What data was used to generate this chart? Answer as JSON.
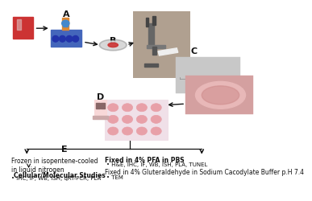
{
  "bg_color": "#ffffff",
  "label_A": "A",
  "label_B": "B",
  "label_C": "C",
  "label_D": "D",
  "label_E": "E",
  "frozen_title": "Frozen in isopentene-cooled\nin liquid nitrogen",
  "cellular_title": "Cellular/Molecular Studies",
  "cellular_items": "• IHC, IF, WB, ISH, qRT-PCR, PLA",
  "fixed_pfa_title": "Fixed in 4% PFA in PBS",
  "fixed_pfa_items": "• H&E, IHC, IF, WB, ISH, PLA, TUNEL",
  "fixed_glut_title": "Fixed in 4% Gluteraldehyde in Sodium Cacodylate Buffer p.H 7.4",
  "fixed_glut_items": "• TEM",
  "arrow_color": "#111111",
  "text_color": "#111111",
  "line_color": "#111111"
}
